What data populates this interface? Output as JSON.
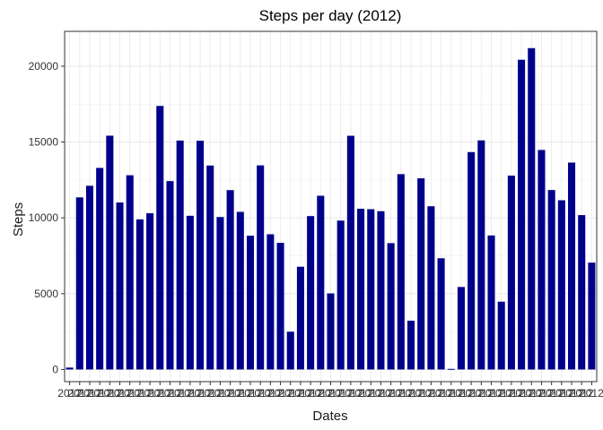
{
  "chart_data": {
    "type": "bar",
    "title": "Steps per day (2012)",
    "xlabel": "Dates",
    "ylabel": "Steps",
    "ylim": [
      -800,
      22300
    ],
    "yticks": [
      0,
      5000,
      10000,
      15000,
      20000
    ],
    "ytick_labels": [
      "0",
      "5000",
      "10000",
      "15000",
      "20000"
    ],
    "x_tick_label": "2012",
    "grid": true,
    "legend": "none",
    "bar_color": "#00008b",
    "values": [
      126,
      11352,
      12116,
      13294,
      15420,
      11015,
      12811,
      9900,
      10304,
      17382,
      12426,
      15098,
      10139,
      15084,
      13452,
      10056,
      11829,
      10395,
      8821,
      13460,
      8918,
      8355,
      2492,
      6778,
      10119,
      11458,
      5018,
      9819,
      15414,
      10600,
      10571,
      10439,
      8334,
      12883,
      3219,
      12608,
      10765,
      7336,
      41,
      5441,
      14339,
      15110,
      8841,
      4472,
      12787,
      20427,
      21194,
      14478,
      11834,
      11162,
      13646,
      10183,
      7047
    ]
  }
}
